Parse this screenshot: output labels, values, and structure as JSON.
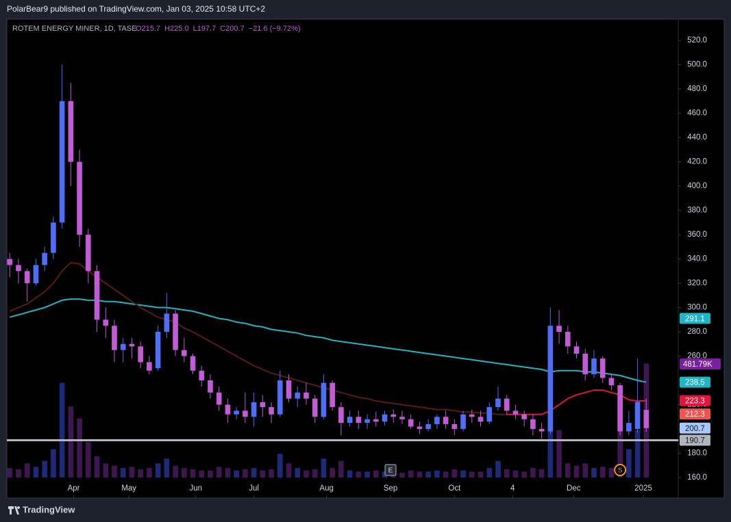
{
  "header": "PolarBear9 published on TradingView.com, Jan 03, 2025 10:58 UTC+2",
  "footer": "TradingView",
  "chart_data": {
    "type": "candlestick",
    "title": "ROTEM ENERGY MINER, 1D, TASE",
    "ohlc": [
      "O215.7",
      "H225.0",
      "L197.7",
      "C200.7"
    ],
    "change": "−21.6 (−9.72%)",
    "up_color": "#4f6ef7",
    "down_color": "#c25bd6",
    "x": [
      0,
      3,
      6,
      9,
      12,
      15,
      18,
      21,
      24,
      27,
      30,
      33,
      36,
      39,
      42,
      45,
      48,
      51,
      54,
      57,
      60,
      63,
      66,
      69,
      72,
      75,
      78,
      81,
      84,
      87,
      90,
      93,
      96,
      99,
      102,
      105,
      108,
      111,
      114,
      117,
      120,
      123,
      126,
      129,
      132,
      135,
      138,
      141,
      144,
      147,
      150,
      153,
      156,
      159,
      162,
      165,
      168,
      171,
      174,
      177,
      180,
      183,
      186,
      189,
      192,
      195,
      198,
      201,
      204,
      207,
      210,
      213,
      216,
      219
    ],
    "open": [
      340,
      335,
      330,
      320,
      335,
      345,
      370,
      470,
      420,
      360,
      330,
      290,
      285,
      265,
      270,
      268,
      255,
      250,
      280,
      295,
      265,
      260,
      248,
      240,
      230,
      220,
      212,
      215,
      210,
      222,
      218,
      212,
      240,
      225,
      230,
      225,
      210,
      238,
      218,
      205,
      210,
      205,
      208,
      206,
      212,
      210,
      208,
      202,
      200,
      204,
      210,
      204,
      200,
      212,
      210,
      206,
      218,
      225,
      215,
      212,
      208,
      200,
      198,
      285,
      280,
      268,
      262,
      245,
      258,
      242,
      236,
      198,
      200,
      215.7
    ],
    "high": [
      345,
      340,
      332,
      340,
      350,
      375,
      500,
      485,
      430,
      365,
      335,
      300,
      290,
      275,
      275,
      272,
      260,
      285,
      312,
      298,
      275,
      262,
      252,
      245,
      235,
      225,
      218,
      230,
      230,
      228,
      222,
      248,
      245,
      235,
      238,
      228,
      245,
      240,
      222,
      215,
      215,
      212,
      214,
      215,
      216,
      215,
      212,
      206,
      208,
      212,
      215,
      208,
      215,
      216,
      215,
      222,
      235,
      228,
      220,
      215,
      212,
      205,
      300,
      298,
      285,
      272,
      266,
      265,
      260,
      245,
      238,
      215,
      258,
      225
    ],
    "low": [
      325,
      320,
      305,
      318,
      330,
      340,
      365,
      400,
      350,
      320,
      280,
      275,
      255,
      255,
      258,
      250,
      245,
      248,
      275,
      260,
      255,
      245,
      235,
      225,
      215,
      205,
      208,
      205,
      202,
      210,
      205,
      210,
      222,
      218,
      220,
      205,
      208,
      215,
      195,
      202,
      200,
      200,
      202,
      203,
      205,
      204,
      200,
      196,
      198,
      200,
      200,
      195,
      198,
      205,
      202,
      204,
      215,
      212,
      208,
      202,
      195,
      192,
      196,
      270,
      262,
      258,
      240,
      242,
      238,
      232,
      195,
      195,
      197,
      197.7
    ],
    "close": [
      335,
      330,
      320,
      335,
      345,
      370,
      470,
      420,
      360,
      330,
      290,
      285,
      265,
      270,
      268,
      255,
      248,
      280,
      295,
      265,
      260,
      248,
      240,
      230,
      220,
      212,
      215,
      210,
      222,
      218,
      212,
      240,
      225,
      230,
      225,
      210,
      238,
      218,
      205,
      210,
      205,
      208,
      206,
      212,
      210,
      208,
      202,
      200,
      204,
      210,
      204,
      200,
      212,
      210,
      206,
      218,
      225,
      215,
      212,
      208,
      200,
      198,
      285,
      280,
      268,
      262,
      245,
      258,
      242,
      236,
      198,
      205,
      222.3,
      200.7
    ],
    "volume": {
      "colors": [
        "#1e2a78",
        "#3e1650"
      ],
      "max": 520000,
      "last_label": "481.79K",
      "values": [
        40000,
        35000,
        60000,
        45000,
        70000,
        120000,
        400000,
        300000,
        250000,
        150000,
        90000,
        60000,
        50000,
        40000,
        45000,
        35000,
        40000,
        60000,
        80000,
        50000,
        40000,
        35000,
        30000,
        30000,
        45000,
        40000,
        30000,
        35000,
        40000,
        30000,
        35000,
        100000,
        60000,
        40000,
        30000,
        35000,
        80000,
        40000,
        70000,
        30000,
        25000,
        25000,
        30000,
        25000,
        25000,
        20000,
        30000,
        25000,
        25000,
        30000,
        25000,
        35000,
        30000,
        25000,
        25000,
        40000,
        70000,
        35000,
        30000,
        25000,
        40000,
        35000,
        450000,
        200000,
        60000,
        50000,
        60000,
        40000,
        45000,
        40000,
        350000,
        120000,
        200000,
        481790
      ]
    },
    "lines": [
      {
        "color": "#1fb5c4",
        "values": [
          292,
          294,
          296,
          298,
          300,
          303,
          306,
          307,
          307,
          306,
          306,
          305,
          305,
          304,
          303,
          302,
          301,
          300,
          300,
          299,
          298,
          297,
          295,
          293,
          291,
          290,
          288,
          287,
          285,
          284,
          282,
          281,
          280,
          279,
          277,
          276,
          275,
          273,
          272,
          271,
          270,
          269,
          268,
          267,
          266,
          265,
          264,
          263,
          262,
          261,
          260,
          259,
          258,
          257,
          256,
          255,
          254,
          253,
          252,
          251,
          250,
          249,
          247,
          248,
          248,
          248,
          247,
          247,
          246,
          245,
          244,
          242,
          240,
          238.5
        ]
      },
      {
        "color": "#5a1a1a",
        "values": [
          297,
          300,
          303,
          308,
          313,
          320,
          330,
          337,
          336,
          330,
          325,
          320,
          315,
          310,
          305,
          300,
          296,
          292,
          290,
          288,
          283,
          280,
          276,
          272,
          268,
          264,
          260,
          256,
          252,
          249,
          246,
          244,
          242,
          240,
          238,
          236,
          234,
          232,
          230,
          228,
          226,
          225,
          223,
          222,
          221,
          220,
          219,
          218,
          217,
          216,
          216,
          215,
          214,
          214,
          213,
          213,
          212,
          212,
          null,
          null,
          null,
          null,
          null,
          null,
          null,
          null,
          null,
          null,
          null,
          null,
          null,
          null,
          null,
          null
        ]
      },
      {
        "color": "#e0143c",
        "values": [
          null,
          null,
          null,
          null,
          null,
          null,
          null,
          null,
          null,
          null,
          null,
          null,
          null,
          null,
          null,
          null,
          null,
          null,
          null,
          null,
          null,
          null,
          null,
          null,
          null,
          null,
          null,
          null,
          null,
          null,
          null,
          null,
          null,
          null,
          null,
          null,
          null,
          null,
          null,
          null,
          null,
          null,
          null,
          null,
          null,
          null,
          null,
          null,
          null,
          null,
          null,
          null,
          null,
          null,
          null,
          null,
          null,
          212,
          212,
          212,
          212,
          212,
          215,
          220,
          225,
          228,
          230,
          232,
          232,
          230,
          228,
          224,
          223,
          223.3
        ]
      }
    ],
    "price_labels": [
      {
        "value": 291.1,
        "color": "#1fb5c4"
      },
      {
        "value": 238.5,
        "color": "#1fb5c4"
      },
      {
        "value": 223.3,
        "color": "#e0143c"
      },
      {
        "value": 212.3,
        "color": "#f05350"
      },
      {
        "value": 200.7,
        "color": "#a8c7fa"
      },
      {
        "value": 190.7,
        "color": "#b2b5be"
      }
    ],
    "events": [
      {
        "label": "E",
        "x": 131
      },
      {
        "label": "S",
        "x": 210
      }
    ],
    "xlim": [
      -1,
      230
    ],
    "ylim": [
      143.1,
      537.5
    ],
    "xticks": [
      {
        "value": 22,
        "label": "Apr"
      },
      {
        "value": 41,
        "label": "May"
      },
      {
        "value": 64,
        "label": "Jun"
      },
      {
        "value": 84,
        "label": "Jul"
      },
      {
        "value": 109,
        "label": "Aug"
      },
      {
        "value": 131,
        "label": "Sep"
      },
      {
        "value": 153,
        "label": "Oct"
      },
      {
        "value": 173,
        "label": "4"
      },
      {
        "value": 194,
        "label": "Dec"
      },
      {
        "value": 218,
        "label": "2025"
      }
    ],
    "yticks": [
      {
        "value": 160,
        "label": "160.0"
      },
      {
        "value": 180,
        "label": "180.0"
      },
      {
        "value": 200,
        "label": "200.0"
      },
      {
        "value": 220,
        "label": "220.0"
      },
      {
        "value": 240,
        "label": "240.0"
      },
      {
        "value": 260,
        "label": "260.0"
      },
      {
        "value": 280,
        "label": "280.0"
      },
      {
        "value": 300,
        "label": "300.0"
      },
      {
        "value": 320,
        "label": "320.0"
      },
      {
        "value": 340,
        "label": "340.0"
      },
      {
        "value": 360,
        "label": "360.0"
      },
      {
        "value": 380,
        "label": "380.0"
      },
      {
        "value": 400,
        "label": "400.0"
      },
      {
        "value": 420,
        "label": "420.0"
      },
      {
        "value": 440,
        "label": "440.0"
      },
      {
        "value": 460,
        "label": "460.0"
      },
      {
        "value": 480,
        "label": "480.0"
      },
      {
        "value": 500,
        "label": "500.0"
      },
      {
        "value": 520,
        "label": "520.0"
      }
    ]
  }
}
